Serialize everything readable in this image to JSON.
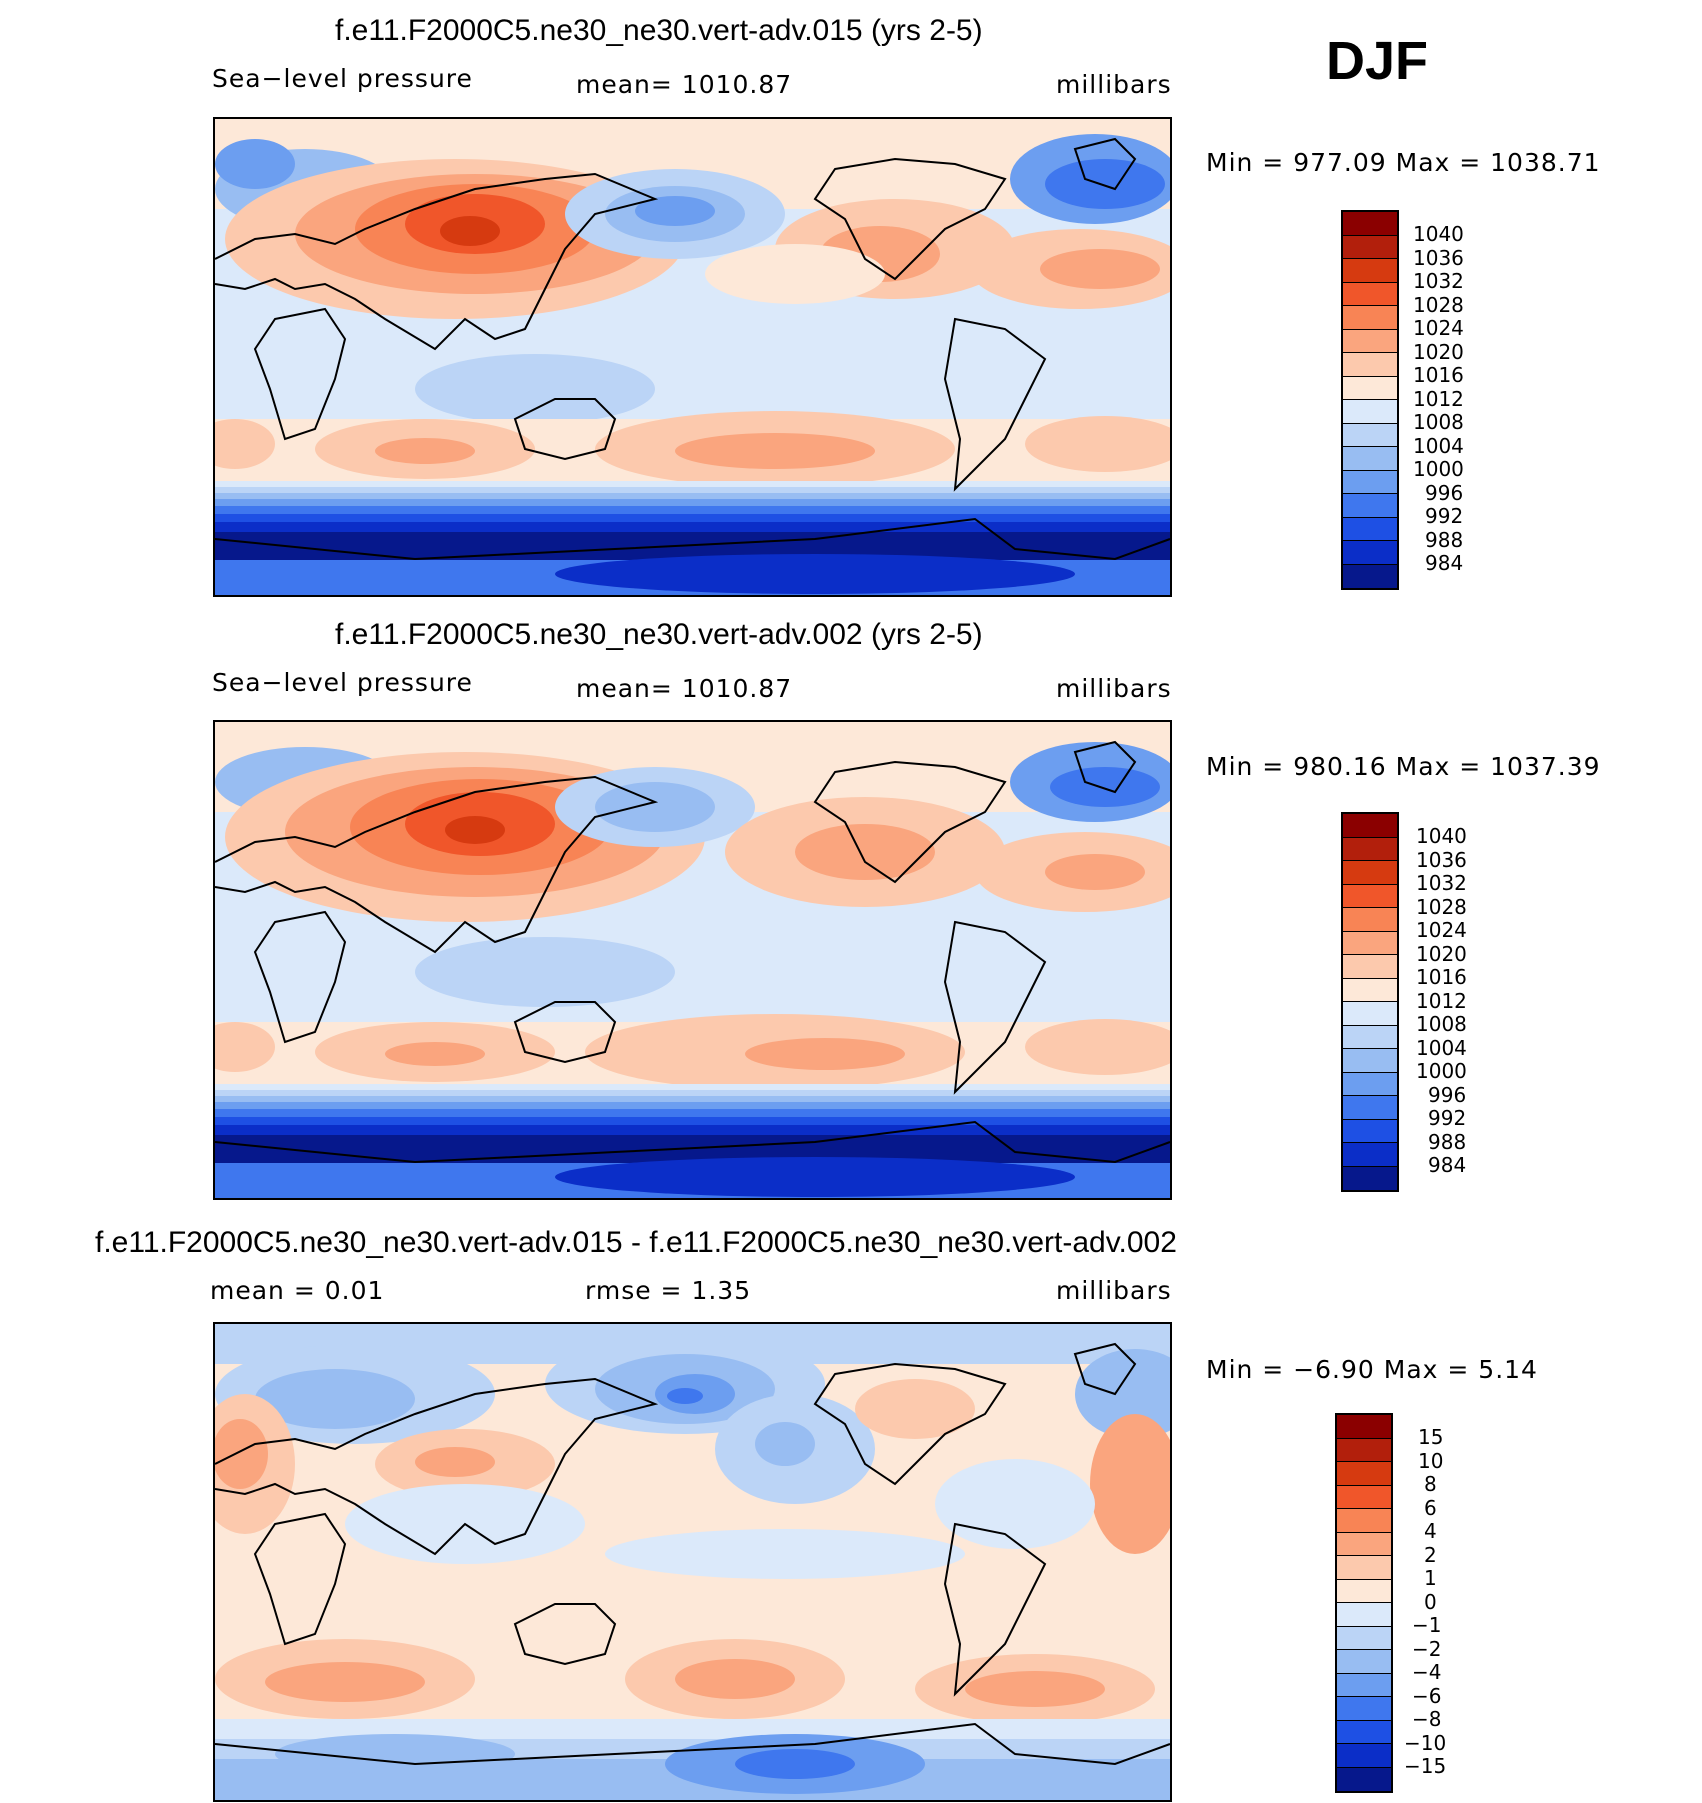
{
  "season": "DJF",
  "panels": [
    {
      "title": "f.e11.F2000C5.ne30_ne30.vert-adv.015 (yrs 2-5)",
      "variable": "Sea−level pressure",
      "mean": "mean=  1010.87",
      "units": "millibars",
      "minmax": "Min  =  977.09  Max  =  1038.71",
      "levels": [
        "1040",
        "1036",
        "1032",
        "1028",
        "1024",
        "1020",
        "1016",
        "1012",
        "1008",
        "1004",
        "1000",
        "996",
        "992",
        "988",
        "984"
      ],
      "colors": [
        "#8b0000",
        "#b21f0c",
        "#d63a10",
        "#f0562a",
        "#f88455",
        "#faa57e",
        "#fcc9ad",
        "#fde8d8",
        "#dbe9fa",
        "#bbd4f6",
        "#98bdf2",
        "#6c9ef0",
        "#3f77ee",
        "#1e50e4",
        "#0b2ec8",
        "#06188c"
      ]
    },
    {
      "title": "f.e11.F2000C5.ne30_ne30.vert-adv.002 (yrs 2-5)",
      "variable": "Sea−level pressure",
      "mean": "mean=  1010.87",
      "units": "millibars",
      "minmax": "Min  =  980.16  Max  =  1037.39",
      "levels": [
        "1040",
        "1036",
        "1032",
        "1028",
        "1024",
        "1020",
        "1016",
        "1012",
        "1008",
        "1004",
        "1000",
        "996",
        "992",
        "988",
        "984"
      ],
      "colors": [
        "#8b0000",
        "#b21f0c",
        "#d63a10",
        "#f0562a",
        "#f88455",
        "#faa57e",
        "#fcc9ad",
        "#fde8d8",
        "#dbe9fa",
        "#bbd4f6",
        "#98bdf2",
        "#6c9ef0",
        "#3f77ee",
        "#1e50e4",
        "#0b2ec8",
        "#06188c"
      ]
    },
    {
      "title": "f.e11.F2000C5.ne30_ne30.vert-adv.015 - f.e11.F2000C5.ne30_ne30.vert-adv.002",
      "mean": "mean  =     0.01",
      "rmse": "rmse  =      1.35",
      "units": "millibars",
      "minmax": "Min  =    −6.90  Max  =      5.14",
      "levels": [
        "15",
        "10",
        "8",
        "6",
        "4",
        "2",
        "1",
        "0",
        "−1",
        "−2",
        "−4",
        "−6",
        "−8",
        "−10",
        "−15"
      ],
      "colors": [
        "#8b0000",
        "#b21f0c",
        "#d63a10",
        "#f0562a",
        "#f88455",
        "#faa57e",
        "#fcc9ad",
        "#fde8d8",
        "#dbe9fa",
        "#bbd4f6",
        "#98bdf2",
        "#6c9ef0",
        "#3f77ee",
        "#1e50e4",
        "#0b2ec8",
        "#06188c"
      ]
    }
  ]
}
